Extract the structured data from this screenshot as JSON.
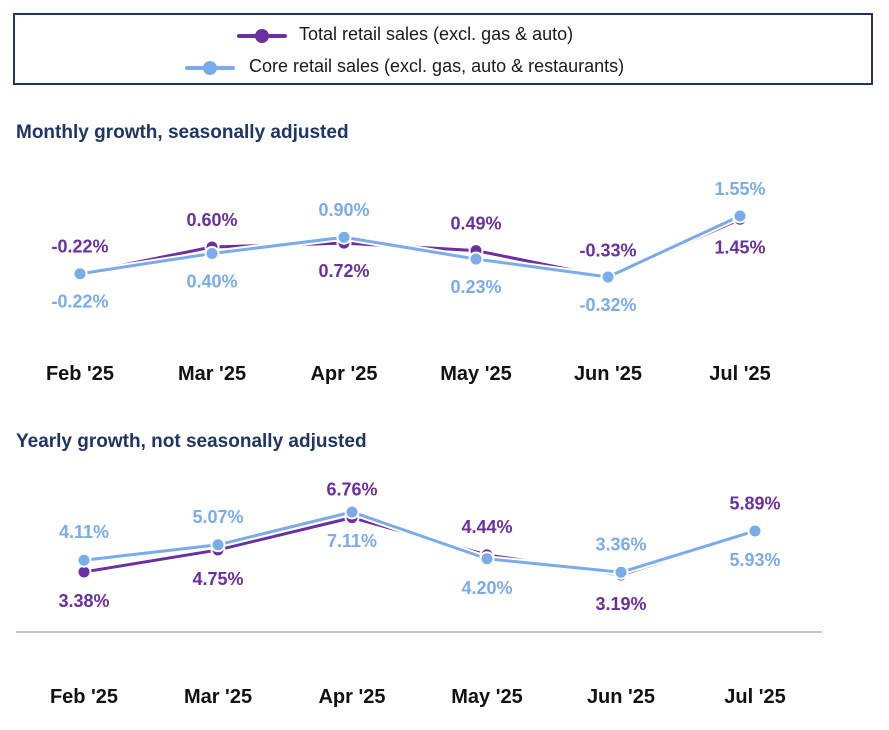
{
  "legend": {
    "items": [
      {
        "label": "Total retail sales (excl. gas & auto)",
        "color": "#6a2fa0"
      },
      {
        "label": "Core retail sales (excl. gas, auto & restaurants)",
        "color": "#7aabea"
      }
    ]
  },
  "chart_data": [
    {
      "type": "line",
      "title": "Monthly growth, seasonally adjusted",
      "categories": [
        "Feb '25",
        "Mar '25",
        "Apr '25",
        "May '25",
        "Jun '25",
        "Jul '25"
      ],
      "series": [
        {
          "name": "Total retail sales (excl. gas & auto)",
          "color": "#6a2fa0",
          "values": [
            -0.22,
            0.6,
            0.72,
            0.49,
            -0.33,
            1.45
          ],
          "labels": [
            "-0.22%",
            "0.60%",
            "0.72%",
            "0.49%",
            "-0.33%",
            "1.45%"
          ]
        },
        {
          "name": "Core retail sales (excl. gas, auto & restaurants)",
          "color": "#7aabea",
          "values": [
            -0.22,
            0.4,
            0.9,
            0.23,
            -0.32,
            1.55
          ],
          "labels": [
            "-0.22%",
            "0.40%",
            "0.90%",
            "0.23%",
            "-0.32%",
            "1.55%"
          ]
        }
      ],
      "ylim": [
        -0.32,
        1.55
      ],
      "grid": false,
      "legend": "top"
    },
    {
      "type": "line",
      "title": "Yearly growth, not seasonally adjusted",
      "categories": [
        "Feb '25",
        "Mar '25",
        "Apr '25",
        "May '25",
        "Jun '25",
        "Jul '25"
      ],
      "series": [
        {
          "name": "Total retail sales (excl. gas & auto)",
          "color": "#6a2fa0",
          "values": [
            3.38,
            4.75,
            6.76,
            4.44,
            3.19,
            5.89
          ],
          "labels": [
            "3.38%",
            "4.75%",
            "6.76%",
            "4.44%",
            "3.19%",
            "5.89%"
          ]
        },
        {
          "name": "Core retail sales (excl. gas, auto & restaurants)",
          "color": "#7aabea",
          "values": [
            4.11,
            5.07,
            7.11,
            4.2,
            3.36,
            5.93
          ],
          "labels": [
            "4.11%",
            "5.07%",
            "7.11%",
            "4.20%",
            "3.36%",
            "5.93%"
          ]
        }
      ],
      "ylim": [
        3.19,
        7.11
      ],
      "grid": false,
      "legend": "top"
    }
  ]
}
